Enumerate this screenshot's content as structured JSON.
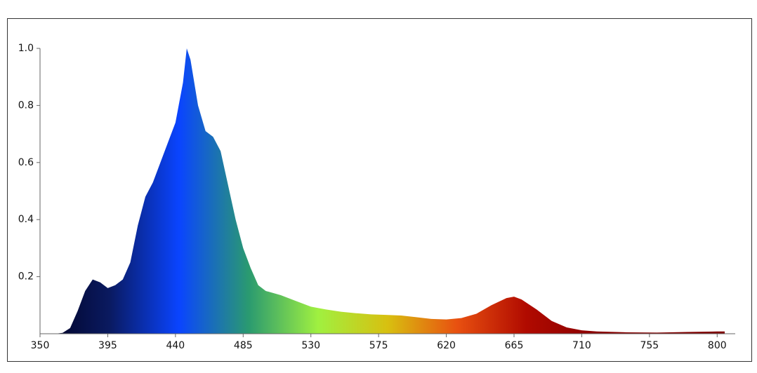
{
  "chart_data": {
    "type": "area",
    "x": [
      350,
      355,
      360,
      365,
      370,
      375,
      380,
      385,
      390,
      395,
      400,
      405,
      410,
      415,
      420,
      425,
      430,
      435,
      440,
      445,
      447.5,
      450,
      455,
      460,
      465,
      470,
      475,
      480,
      485,
      490,
      495,
      500,
      510,
      520,
      530,
      540,
      550,
      560,
      570,
      580,
      590,
      600,
      610,
      620,
      630,
      640,
      650,
      660,
      665,
      670,
      680,
      690,
      700,
      710,
      720,
      740,
      760,
      780,
      800,
      805
    ],
    "values": [
      0,
      0,
      0,
      0.003,
      0.02,
      0.08,
      0.15,
      0.19,
      0.18,
      0.16,
      0.17,
      0.19,
      0.25,
      0.38,
      0.48,
      0.53,
      0.6,
      0.67,
      0.74,
      0.88,
      1.0,
      0.96,
      0.8,
      0.71,
      0.69,
      0.64,
      0.52,
      0.4,
      0.3,
      0.23,
      0.17,
      0.15,
      0.135,
      0.115,
      0.095,
      0.085,
      0.077,
      0.072,
      0.068,
      0.066,
      0.064,
      0.058,
      0.052,
      0.05,
      0.055,
      0.07,
      0.1,
      0.125,
      0.13,
      0.12,
      0.085,
      0.045,
      0.022,
      0.012,
      0.008,
      0.005,
      0.004,
      0.006,
      0.008,
      0.008
    ],
    "gradient_colors": [
      "#000020",
      "#0a1a60",
      "#0a44ff",
      "#2a9a70",
      "#a0f040",
      "#d8c010",
      "#e85010",
      "#b00a00",
      "#8a0000",
      "#800000",
      "#800000"
    ],
    "xlim": [
      350,
      812
    ],
    "ylim": [
      0,
      1.0
    ],
    "xticks": [
      350,
      395,
      440,
      485,
      530,
      575,
      620,
      665,
      710,
      755,
      800
    ],
    "yticks": [
      0.2,
      0.4,
      0.6,
      0.8,
      {
        "value": 1.0,
        "label": "1.0"
      }
    ]
  }
}
